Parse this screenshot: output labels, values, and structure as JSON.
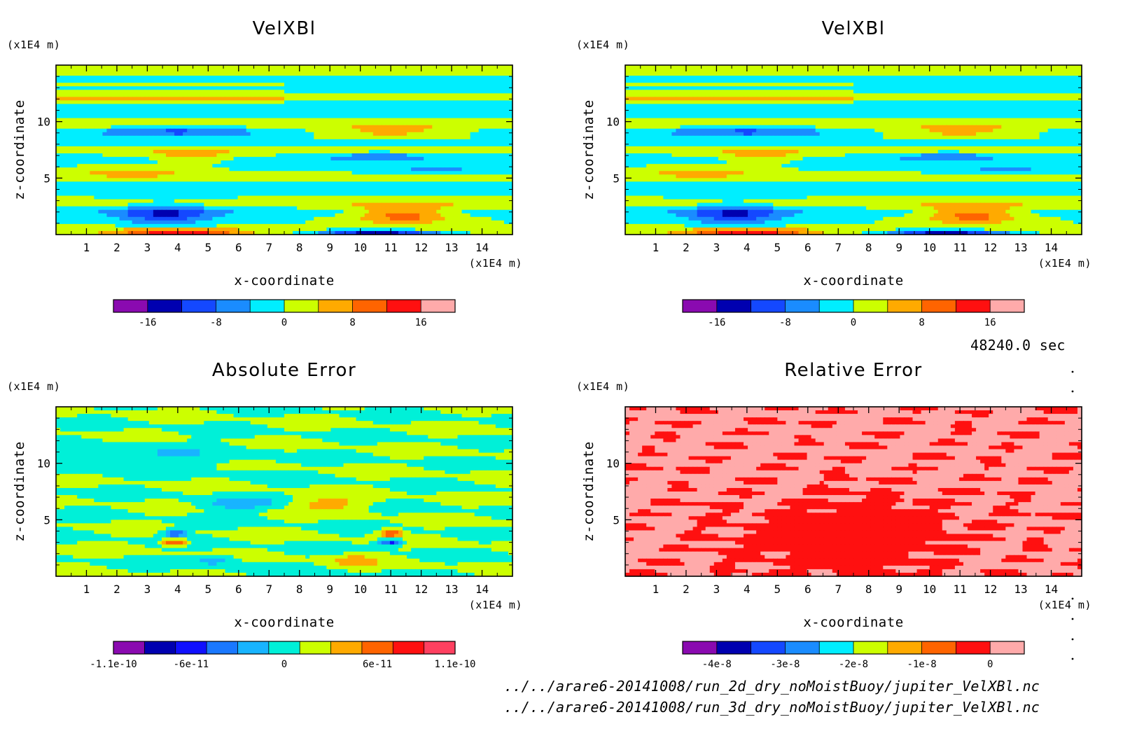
{
  "timestamp": "48240.0 sec",
  "files": [
    "../../arare6-20141008/run_2d_dry_noMoistBuoy/jupiter_VelXBl.nc",
    "../../arare6-20141008/run_3d_dry_noMoistBuoy/jupiter_VelXBl.nc"
  ],
  "colors": {
    "levels11": [
      "#8a0ab0",
      "#0000b0",
      "#1448ff",
      "#1a8cff",
      "#00eeff",
      "#ccff00",
      "#ffaa00",
      "#ff6400",
      "#ff1010",
      "#ffaaaa"
    ],
    "levels12": [
      "#8a0ab0",
      "#0000b0",
      "#1010ff",
      "#1a78ff",
      "#18b4ff",
      "#00f0d8",
      "#ccff00",
      "#ffaa00",
      "#ff6400",
      "#ff1010",
      "#ff4060",
      "#ffaaaa"
    ]
  },
  "chart_data": [
    {
      "type": "heatmap",
      "title": "VelXBl",
      "xlabel": "x-coordinate",
      "ylabel": "z-coordinate",
      "x_unit": "(x1E4 m)",
      "y_unit": "(x1E4 m)",
      "x_ticks": [
        1,
        2,
        3,
        4,
        5,
        6,
        7,
        8,
        9,
        10,
        11,
        12,
        13,
        14
      ],
      "y_ticks": [
        5,
        10
      ],
      "xlim": [
        0,
        15
      ],
      "ylim": [
        0,
        15
      ],
      "field": "velocity",
      "colorbar": {
        "ticks": [
          "-16",
          "-8",
          "0",
          "8",
          "16"
        ],
        "levels": 10,
        "tick_positions": [
          1,
          3,
          5,
          7,
          9
        ],
        "palette": "levels11"
      }
    },
    {
      "type": "heatmap",
      "title": "VelXBl",
      "xlabel": "x-coordinate",
      "ylabel": "z-coordinate",
      "x_unit": "(x1E4 m)",
      "y_unit": "(x1E4 m)",
      "x_ticks": [
        1,
        2,
        3,
        4,
        5,
        6,
        7,
        8,
        9,
        10,
        11,
        12,
        13,
        14
      ],
      "y_ticks": [
        5,
        10
      ],
      "xlim": [
        0,
        15
      ],
      "ylim": [
        0,
        15
      ],
      "field": "velocity",
      "colorbar": {
        "ticks": [
          "-16",
          "-8",
          "0",
          "8",
          "16"
        ],
        "levels": 10,
        "tick_positions": [
          1,
          3,
          5,
          7,
          9
        ],
        "palette": "levels11"
      }
    },
    {
      "type": "heatmap",
      "title": "Absolute Error",
      "xlabel": "x-coordinate",
      "ylabel": "z-coordinate",
      "x_unit": "(x1E4 m)",
      "y_unit": "(x1E4 m)",
      "x_ticks": [
        1,
        2,
        3,
        4,
        5,
        6,
        7,
        8,
        9,
        10,
        11,
        12,
        13,
        14
      ],
      "y_ticks": [
        5,
        10
      ],
      "xlim": [
        0,
        15
      ],
      "ylim": [
        0,
        15
      ],
      "field": "abs_error",
      "colorbar": {
        "ticks": [
          "-1.1e-10",
          "-6e-11",
          "0",
          "6e-11",
          "1.1e-10"
        ],
        "levels": 11,
        "tick_positions": [
          0,
          2.5,
          5.5,
          8.5,
          11
        ],
        "palette": "levels12"
      }
    },
    {
      "type": "heatmap",
      "title": "Relative Error",
      "xlabel": "x-coordinate",
      "ylabel": "z-coordinate",
      "x_unit": "(x1E4 m)",
      "y_unit": "(x1E4 m)",
      "x_ticks": [
        1,
        2,
        3,
        4,
        5,
        6,
        7,
        8,
        9,
        10,
        11,
        12,
        13,
        14
      ],
      "y_ticks": [
        5,
        10
      ],
      "xlim": [
        0,
        15
      ],
      "ylim": [
        0,
        15
      ],
      "field": "rel_error",
      "colorbar": {
        "ticks": [
          "-4e-8",
          "-3e-8",
          "-2e-8",
          "-1e-8",
          "0"
        ],
        "levels": 10,
        "tick_positions": [
          1,
          3,
          5,
          7,
          9
        ],
        "palette": "levels11"
      }
    }
  ]
}
